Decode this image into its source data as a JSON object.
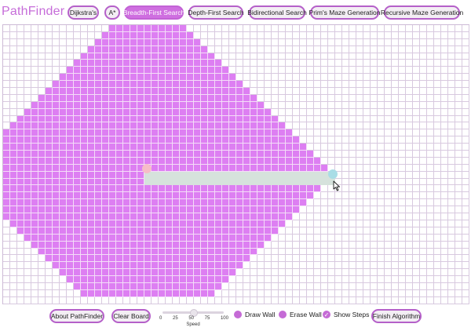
{
  "app": {
    "title": "PathFinder"
  },
  "algorithms": [
    {
      "label": "Dijkstra's",
      "active": false
    },
    {
      "label": "A*",
      "active": false
    },
    {
      "label": "Breadth-First Search",
      "active": true
    },
    {
      "label": "Depth-First Search",
      "active": false
    },
    {
      "label": "Bidirectional Search",
      "active": false
    },
    {
      "label": "Prim's Maze Generation",
      "active": false
    },
    {
      "label": "Recursive Maze Generation",
      "active": false
    }
  ],
  "controls": {
    "about_label": "About PathFinder",
    "clear_label": "Clear Board",
    "speed": {
      "label": "Speed",
      "ticks": [
        "0",
        "25",
        "50",
        "75",
        "100"
      ],
      "value": 50
    },
    "draw_wall_label": "Draw Wall",
    "erase_wall_label": "Erase Wall",
    "show_steps_label": "Show Steps",
    "finish_label": "Finish Algorithm"
  },
  "colors": {
    "accent": "#c66dd9",
    "visited": "#dd7ff2",
    "path": "#d6e2dc",
    "start_node": "#f7bcc8",
    "end_node": "#a9dde6"
  }
}
